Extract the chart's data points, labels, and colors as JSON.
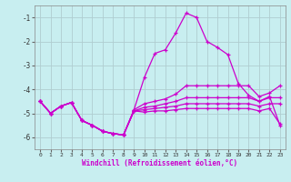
{
  "xlabel": "Windchill (Refroidissement éolien,°C)",
  "background_color": "#c8eef0",
  "line_color": "#cc00cc",
  "grid_color": "#b0cdd0",
  "x_values": [
    0,
    1,
    2,
    3,
    4,
    5,
    6,
    7,
    8,
    9,
    10,
    11,
    12,
    13,
    14,
    15,
    16,
    17,
    18,
    19,
    20,
    21,
    22,
    23
  ],
  "curves": [
    [
      -4.5,
      -5.0,
      -4.7,
      -4.55,
      -5.3,
      -5.5,
      -5.75,
      -5.85,
      -5.9,
      -4.85,
      -3.5,
      -2.5,
      -2.35,
      -1.65,
      -0.82,
      -1.0,
      -2.0,
      -2.25,
      -2.55,
      -3.75,
      -4.25,
      -4.5,
      -4.3,
      -5.5
    ],
    [
      -4.5,
      -5.0,
      -4.7,
      -4.55,
      -5.3,
      -5.5,
      -5.75,
      -5.85,
      -5.9,
      -4.85,
      -4.6,
      -4.5,
      -4.4,
      -4.2,
      -3.85,
      -3.85,
      -3.85,
      -3.85,
      -3.85,
      -3.85,
      -3.85,
      -4.3,
      -4.15,
      -3.85
    ],
    [
      -4.5,
      -5.0,
      -4.7,
      -4.55,
      -5.3,
      -5.5,
      -5.75,
      -5.85,
      -5.9,
      -4.9,
      -4.75,
      -4.7,
      -4.6,
      -4.5,
      -4.35,
      -4.35,
      -4.35,
      -4.35,
      -4.35,
      -4.35,
      -4.35,
      -4.5,
      -4.35,
      -4.35
    ],
    [
      -4.5,
      -5.0,
      -4.7,
      -4.55,
      -5.3,
      -5.5,
      -5.75,
      -5.85,
      -5.9,
      -4.9,
      -4.85,
      -4.8,
      -4.75,
      -4.7,
      -4.6,
      -4.6,
      -4.6,
      -4.6,
      -4.6,
      -4.6,
      -4.6,
      -4.7,
      -4.6,
      -4.6
    ],
    [
      -4.5,
      -5.0,
      -4.7,
      -4.55,
      -5.3,
      -5.5,
      -5.75,
      -5.85,
      -5.9,
      -4.9,
      -4.95,
      -4.9,
      -4.9,
      -4.85,
      -4.8,
      -4.8,
      -4.8,
      -4.8,
      -4.8,
      -4.8,
      -4.8,
      -4.9,
      -4.8,
      -5.45
    ]
  ],
  "ylim": [
    -6.5,
    -0.5
  ],
  "yticks": [
    -6,
    -5,
    -4,
    -3,
    -2,
    -1
  ],
  "xlim": [
    -0.5,
    23.5
  ]
}
